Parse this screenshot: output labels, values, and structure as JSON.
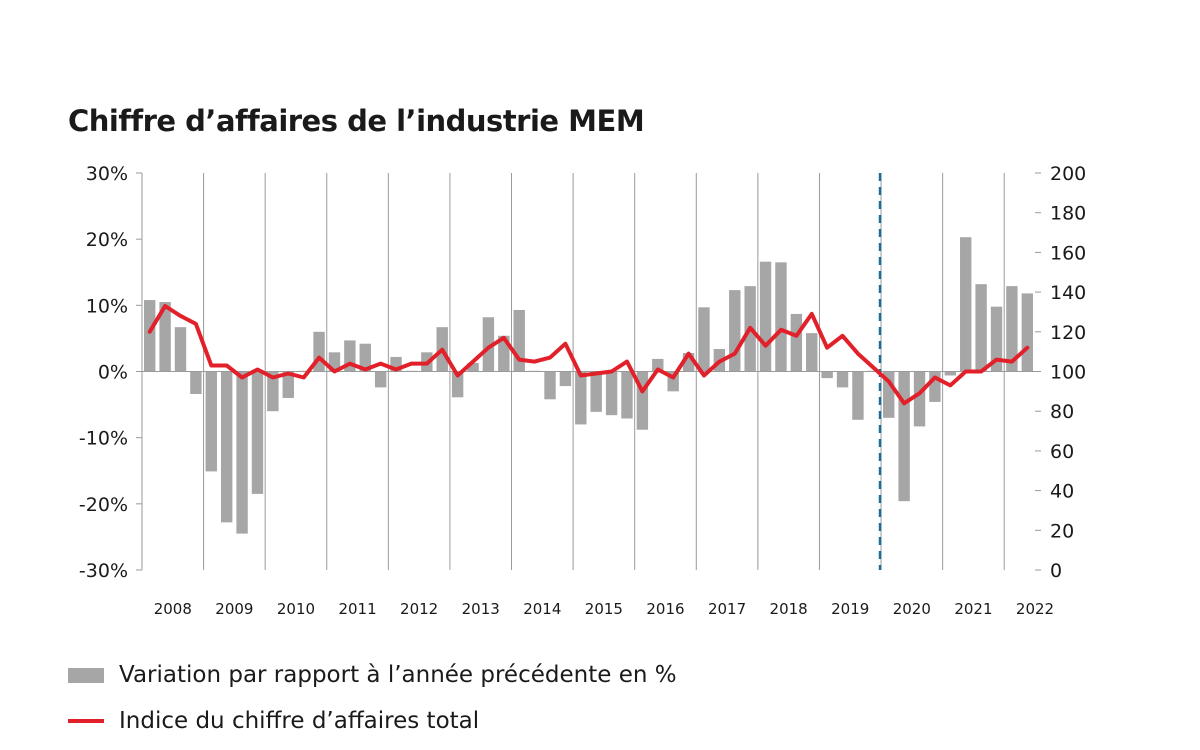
{
  "chart_data": {
    "type": "bar",
    "title": "Chiffre d’affaires de l’industrie MEM",
    "left_axis": {
      "ticks": [
        30,
        20,
        10,
        0,
        -10,
        -20,
        -30
      ],
      "tick_labels": [
        "30%",
        "20%",
        "10%",
        "0%",
        "-10%",
        "-20%",
        "-30%"
      ],
      "ylim": [
        -30,
        30
      ]
    },
    "right_axis": {
      "ticks": [
        200,
        180,
        160,
        140,
        120,
        100,
        80,
        60,
        40,
        20,
        0
      ],
      "tick_labels": [
        "200",
        "180",
        "160",
        "140",
        "120",
        "100",
        "80",
        "60",
        "40",
        "20",
        "0"
      ],
      "ylim": [
        0,
        200
      ]
    },
    "years": [
      "2008",
      "2009",
      "2010",
      "2011",
      "2012",
      "2013",
      "2014",
      "2015",
      "2016",
      "2017",
      "2018",
      "2019",
      "2020",
      "2021",
      "2022"
    ],
    "categories": [
      "2008 Q1",
      "2008 Q2",
      "2008 Q3",
      "2008 Q4",
      "2009 Q1",
      "2009 Q2",
      "2009 Q3",
      "2009 Q4",
      "2010 Q1",
      "2010 Q2",
      "2010 Q3",
      "2010 Q4",
      "2011 Q1",
      "2011 Q2",
      "2011 Q3",
      "2011 Q4",
      "2012 Q1",
      "2012 Q2",
      "2012 Q3",
      "2012 Q4",
      "2013 Q1",
      "2013 Q2",
      "2013 Q3",
      "2013 Q4",
      "2014 Q1",
      "2014 Q2",
      "2014 Q3",
      "2014 Q4",
      "2015 Q1",
      "2015 Q2",
      "2015 Q3",
      "2015 Q4",
      "2016 Q1",
      "2016 Q2",
      "2016 Q3",
      "2016 Q4",
      "2017 Q1",
      "2017 Q2",
      "2017 Q3",
      "2017 Q4",
      "2018 Q1",
      "2018 Q2",
      "2018 Q3",
      "2018 Q4",
      "2019 Q1",
      "2019 Q2",
      "2019 Q3",
      "2019 Q4",
      "2020 Q1",
      "2020 Q2",
      "2020 Q3",
      "2020 Q4",
      "2021 Q1",
      "2021 Q2",
      "2021 Q3",
      "2021 Q4",
      "2022 Q1",
      "2022 Q2"
    ],
    "series": [
      {
        "name": "Variation par rapport à l’année précédente en %",
        "axis": "left",
        "kind": "bar",
        "color": "#a6a6a6",
        "values": [
          10.8,
          10.5,
          6.7,
          -3.4,
          -15.1,
          -22.8,
          -24.5,
          -18.5,
          -6.0,
          -4.0,
          0.1,
          6.0,
          2.9,
          4.7,
          4.2,
          -2.4,
          2.2,
          0.1,
          2.9,
          6.7,
          -3.9,
          1.3,
          8.2,
          5.4,
          9.3,
          0.1,
          -4.2,
          -2.2,
          -8.0,
          -6.1,
          -6.6,
          -7.1,
          -8.8,
          1.9,
          -3.0,
          2.8,
          9.7,
          3.4,
          12.3,
          12.9,
          16.6,
          16.5,
          8.7,
          5.8,
          -1.0,
          -2.4,
          -7.3,
          0.1,
          -7.0,
          -19.6,
          -8.3,
          -4.6,
          -0.6,
          20.3,
          13.2,
          9.8,
          12.9,
          11.8
        ]
      },
      {
        "name": "Indice du chiffre d’affaires total",
        "axis": "right",
        "kind": "line",
        "color": "#e2202a",
        "values": [
          120,
          133,
          128,
          124,
          103,
          103,
          97,
          101,
          97,
          99,
          97,
          107,
          100,
          104,
          101,
          104,
          101,
          104,
          104,
          111,
          98,
          105,
          112,
          117,
          106,
          105,
          107,
          114,
          98,
          99,
          100,
          105,
          90,
          101,
          97,
          109,
          98,
          105,
          109,
          122,
          113,
          121,
          118,
          129,
          112,
          118,
          109,
          102,
          95,
          84,
          89,
          97,
          93,
          100,
          100,
          106,
          105,
          112
        ]
      }
    ],
    "vertical_marker": {
      "between": [
        "2019 Q4",
        "2020 Q1"
      ],
      "style": "dashed",
      "color": "#1b6c9a"
    },
    "grid": {
      "vertical_year_lines": true,
      "horizontal": false
    },
    "legend_position": "bottom-left"
  },
  "legend": {
    "bars_label": "Variation par rapport à l’année précédente en %",
    "line_label": "Indice du chiffre d’affaires total"
  }
}
